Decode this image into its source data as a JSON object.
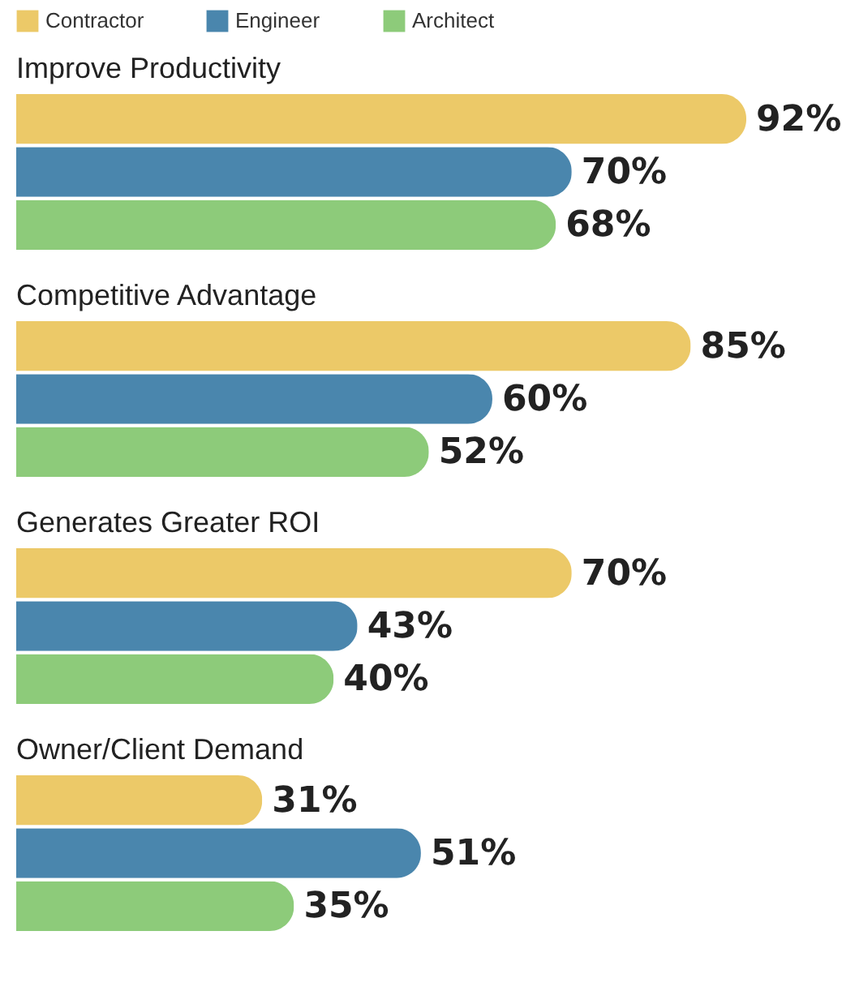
{
  "chart_data": {
    "type": "bar",
    "orientation": "horizontal",
    "legend": "top left",
    "categories": [
      "Improve Productivity",
      "Competitive Advantage",
      "Generates Greater ROI",
      "Owner/Client Demand"
    ],
    "series": [
      {
        "name": "Contractor",
        "color": "#ecc968",
        "values": [
          92,
          85,
          70,
          31
        ],
        "value_labels": [
          "92%",
          "85%",
          "70%",
          "31%"
        ]
      },
      {
        "name": "Engineer",
        "color": "#4a86ad",
        "values": [
          70,
          60,
          43,
          51
        ],
        "value_labels": [
          "70%",
          "60%",
          "43%",
          "51%"
        ]
      },
      {
        "name": "Architect",
        "color": "#8dcb7a",
        "values": [
          68,
          52,
          40,
          35
        ],
        "value_labels": [
          "68%",
          "52%",
          "40%",
          "35%"
        ]
      }
    ]
  }
}
